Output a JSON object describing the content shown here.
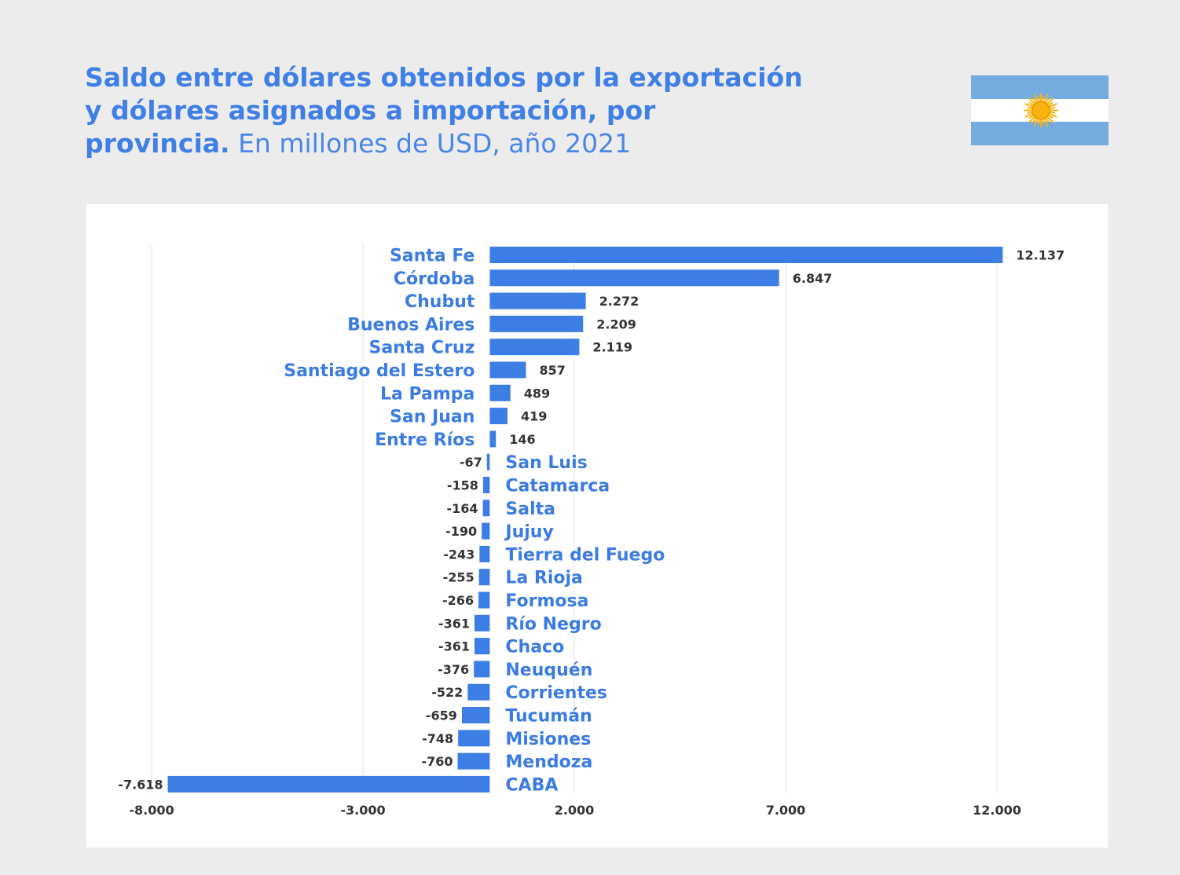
{
  "title": {
    "line1": "Saldo entre dólares obtenidos por la exportación",
    "line2": "y dólares asignados a importación, por",
    "line3_bold": "provincia.",
    "line3_light": "En millones de USD, año 2021"
  },
  "colors": {
    "bar": "#3d7ee5",
    "label": "#3b7be3",
    "flag_blue": "#74acdf",
    "flag_sun": "#f6b40e"
  },
  "chart_data": {
    "type": "bar",
    "orientation": "horizontal",
    "categories": [
      "Santa Fe",
      "Córdoba",
      "Chubut",
      "Buenos Aires",
      "Santa Cruz",
      "Santiago del Estero",
      "La Pampa",
      "San Juan",
      "Entre Ríos",
      "San Luis",
      "Catamarca",
      "Salta",
      "Jujuy",
      "Tierra del Fuego",
      "La Rioja",
      "Formosa",
      "Río Negro",
      "Chaco",
      "Neuquén",
      "Corrientes",
      "Tucumán",
      "Misiones",
      "Mendoza",
      "CABA"
    ],
    "values": [
      12137,
      6847,
      2272,
      2209,
      2119,
      857,
      489,
      419,
      146,
      -67,
      -158,
      -164,
      -190,
      -243,
      -255,
      -266,
      -361,
      -361,
      -376,
      -522,
      -659,
      -748,
      -760,
      -7618
    ],
    "value_labels": [
      "12.137",
      "6.847",
      "2.272",
      "2.209",
      "2.119",
      "857",
      "489",
      "419",
      "146",
      "-67",
      "-158",
      "-164",
      "-190",
      "-243",
      "-255",
      "-266",
      "-361",
      "-361",
      "-376",
      "-522",
      "-659",
      "-748",
      "-760",
      "-7.618"
    ],
    "xlim": [
      -8000,
      12000
    ],
    "xticks": [
      -8000,
      -3000,
      2000,
      7000,
      12000
    ],
    "xtick_labels": [
      "-8.000",
      "-3.000",
      "2.000",
      "7.000",
      "12.000"
    ],
    "grid": true,
    "legend": "none"
  }
}
